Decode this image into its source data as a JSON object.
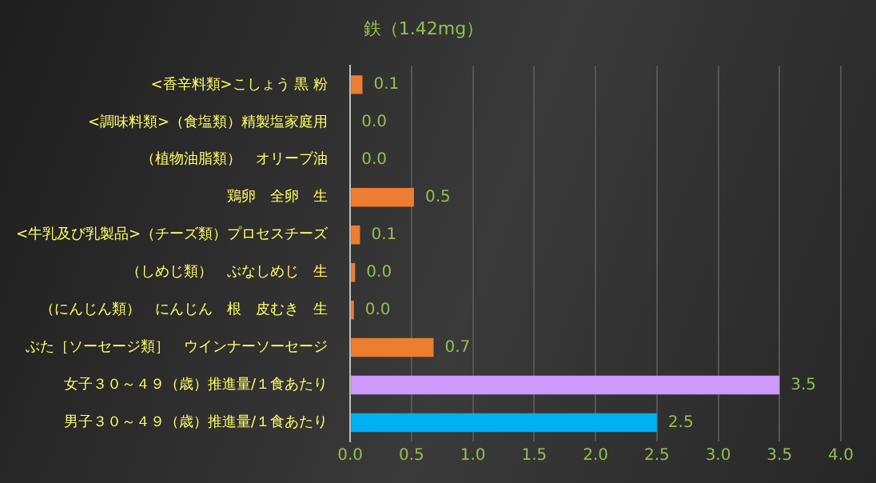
{
  "chart_data": {
    "type": "bar",
    "orientation": "horizontal",
    "title": "鉄（1.42mg）",
    "categories": [
      "<香辛料類>こしょう 黒 粉",
      "<調味料類>（食塩類）精製塩家庭用",
      "（植物油脂類）　オリーブ油",
      "鶏卵　全卵　生",
      "<牛乳及び乳製品>（チーズ類）プロセスチーズ",
      "（しめじ類）　ぶなしめじ　生",
      "（にんじん類）　にんじん　根　皮むき　生",
      "ぶた［ソーセージ類］　ウインナーソーセージ",
      "女子３０～４９（歳）推進量/１食あたり",
      "男子３０～４９（歳）推進量/１食あたり"
    ],
    "values": [
      0.1,
      0,
      0,
      0.52,
      0.08,
      0.04,
      0.03,
      0.68,
      3.5,
      2.5
    ],
    "value_labels": [
      "0.1",
      "0.0",
      "0.0",
      "0.5",
      "0.1",
      "0.0",
      "0.0",
      "0.7",
      "3.5",
      "2.5"
    ],
    "colors": [
      "#ed7d31",
      "#ed7d31",
      "#ed7d31",
      "#ed7d31",
      "#ed7d31",
      "#ed7d31",
      "#ed7d31",
      "#ed7d31",
      "#cc99ff",
      "#00b0f0"
    ],
    "xlim": [
      0,
      4
    ],
    "xticks": [
      "0.0",
      "0.5",
      "1.0",
      "1.5",
      "2.0",
      "2.5",
      "3.0",
      "3.5",
      "4.0"
    ],
    "grid": "x",
    "legend": false
  }
}
